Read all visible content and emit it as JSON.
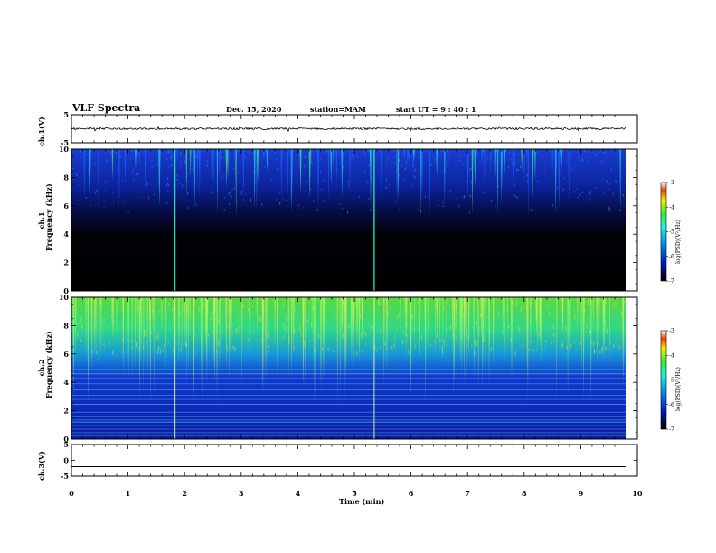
{
  "header": {
    "title": "VLF Spectra",
    "date": "Dec. 15, 2020",
    "station": "station=MAM",
    "start": "start  UT =   9 : 40 : 1"
  },
  "chart_data": [
    {
      "type": "line",
      "panel": "ch.1 waveform",
      "ylabel": "ch.1(V)",
      "ylim": [
        -5,
        5
      ],
      "yticks": [
        "5",
        "-5"
      ],
      "baseline_value": 0,
      "color": "#000000"
    },
    {
      "type": "heatmap",
      "panel": "ch.1 spectrogram",
      "ylabel_line1": "ch.1",
      "ylabel_line2": "Frequency (kHz)",
      "ylim": [
        0,
        10
      ],
      "yticks": [
        "0",
        "2",
        "4",
        "6",
        "8",
        "10"
      ],
      "colorbar": {
        "label": "log(PSD)(V²/Hz)",
        "range": [
          -7,
          -3
        ],
        "ticks": [
          "-3",
          "-4",
          "-5",
          "-6",
          "-7"
        ]
      },
      "strong_events_min": [
        1.83,
        5.35
      ]
    },
    {
      "type": "heatmap",
      "panel": "ch.2 spectrogram",
      "ylabel_line1": "ch.2",
      "ylabel_line2": "Frequency (kHz)",
      "ylim": [
        0,
        10
      ],
      "yticks": [
        "0",
        "2",
        "4",
        "6",
        "8",
        "10"
      ],
      "colorbar": {
        "label": "log(PSD)(V²/Hz)",
        "range": [
          -7,
          -3
        ],
        "ticks": [
          "-3",
          "-4",
          "-5",
          "-6",
          "-7"
        ]
      },
      "strong_events_min": [
        1.83,
        5.35
      ]
    },
    {
      "type": "line",
      "panel": "ch.3 waveform",
      "ylabel": "ch.3(V)",
      "ylim": [
        -5,
        5
      ],
      "yticks": [
        "5",
        "0",
        "-5"
      ],
      "baseline_value": -2,
      "color": "#000000"
    }
  ],
  "xaxis": {
    "label": "Time (min)",
    "range": [
      0,
      10
    ],
    "ticks": [
      "0",
      "1",
      "2",
      "3",
      "4",
      "5",
      "6",
      "7",
      "8",
      "9",
      "10"
    ]
  },
  "colors": {
    "dark": "#05050f",
    "blue": "#1238d8",
    "cyan": "#1de0e0",
    "green": "#2ee84a",
    "yellow": "#f4f020",
    "red": "#e81818"
  }
}
